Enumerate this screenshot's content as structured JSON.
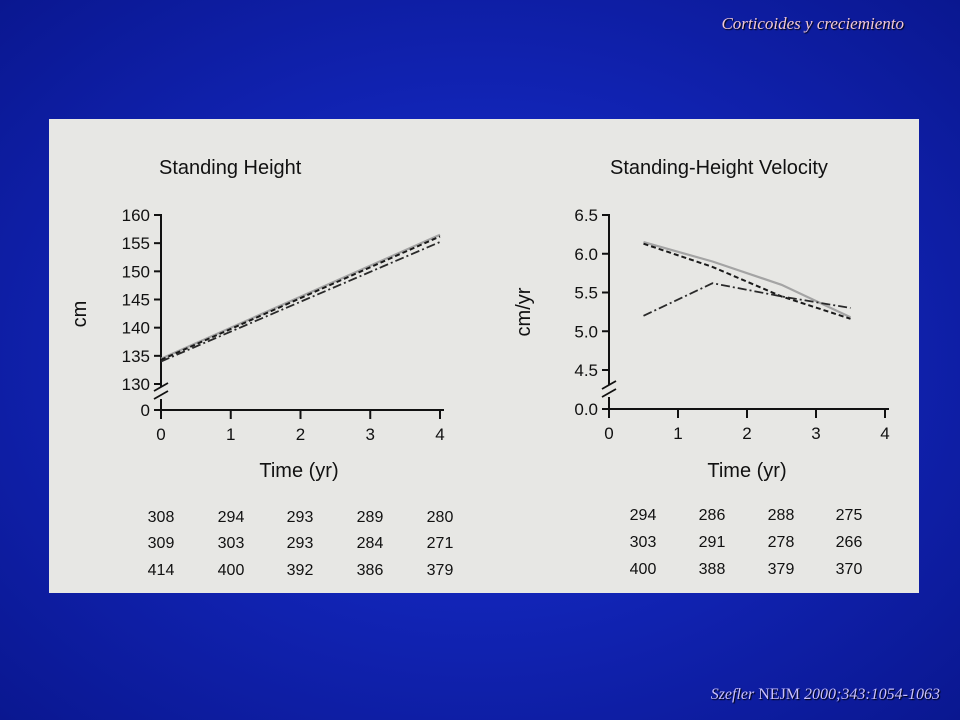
{
  "slide": {
    "title": "Corticoides y creciemiento",
    "citation_author": "Szefler",
    "citation_journal": "NEJM",
    "citation_ref": "2000;343:1054-1063"
  },
  "chart_data": [
    {
      "type": "line",
      "title": "Standing Height",
      "xlabel": "Time (yr)",
      "ylabel": "cm",
      "xlim": [
        0,
        4
      ],
      "x_ticks": [
        "0",
        "1",
        "2",
        "3",
        "4"
      ],
      "y_ticks": [
        "0",
        "130",
        "135",
        "140",
        "145",
        "150",
        "155",
        "160"
      ],
      "y_axis_break": "between 0 and 130",
      "grid": false,
      "series": [
        {
          "style": "solid-gray",
          "x": [
            0,
            4
          ],
          "values": [
            134.5,
            156.5
          ]
        },
        {
          "style": "dashed",
          "x": [
            0,
            4
          ],
          "values": [
            134.3,
            156.2
          ]
        },
        {
          "style": "dash-dot",
          "x": [
            0,
            4
          ],
          "values": [
            134.0,
            155.2
          ]
        }
      ],
      "table": [
        [
          "308",
          "294",
          "293",
          "289",
          "280"
        ],
        [
          "309",
          "303",
          "293",
          "284",
          "271"
        ],
        [
          "414",
          "400",
          "392",
          "386",
          "379"
        ]
      ]
    },
    {
      "type": "line",
      "title": "Standing-Height Velocity",
      "xlabel": "Time (yr)",
      "ylabel": "cm/yr",
      "xlim": [
        0,
        4
      ],
      "x_ticks": [
        "0",
        "1",
        "2",
        "3",
        "4"
      ],
      "y_ticks": [
        "0.0",
        "4.5",
        "5.0",
        "5.5",
        "6.0",
        "6.5"
      ],
      "y_axis_break": "between 0.0 and 4.5",
      "grid": false,
      "series": [
        {
          "style": "solid-gray",
          "x": [
            0.5,
            1.5,
            2.5,
            3.5
          ],
          "values": [
            6.15,
            5.9,
            5.6,
            5.18
          ]
        },
        {
          "style": "dashed",
          "x": [
            0.5,
            1.5,
            2.5,
            3.5
          ],
          "values": [
            6.13,
            5.83,
            5.45,
            5.16
          ]
        },
        {
          "style": "dash-dot",
          "x": [
            0.5,
            1.5,
            2.5,
            3.5
          ],
          "values": [
            5.2,
            5.62,
            5.45,
            5.3
          ]
        }
      ],
      "table": [
        [
          "294",
          "286",
          "288",
          "275"
        ],
        [
          "303",
          "291",
          "278",
          "266"
        ],
        [
          "400",
          "388",
          "379",
          "370"
        ]
      ]
    }
  ]
}
